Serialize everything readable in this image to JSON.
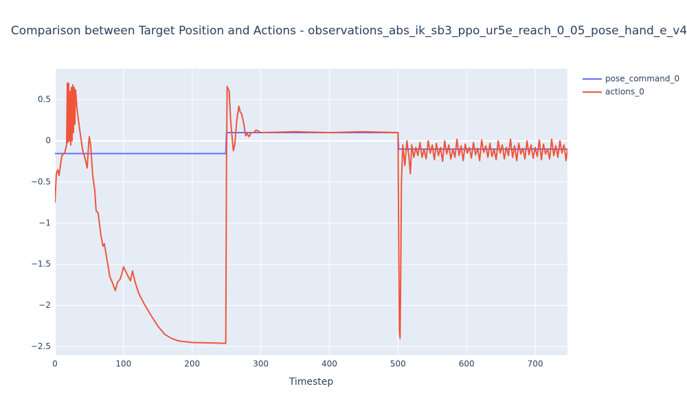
{
  "chart_data": {
    "type": "line",
    "title": "Comparison between Target Position and Actions - observations_abs_ik_sb3_ppo_ur5e_reach_0_05_pose_hand_e_v4",
    "xlabel": "Timestep",
    "xlim": [
      0,
      747
    ],
    "xticks": [
      0,
      100,
      200,
      300,
      400,
      500,
      600,
      700
    ],
    "ylim": [
      -2.604,
      0.876
    ],
    "yticks": [
      {
        "value": 0.5,
        "label": "0.5"
      },
      0,
      {
        "value": -0.5,
        "label": "−0.5"
      },
      {
        "value": -1,
        "label": "−1"
      },
      {
        "value": -1.5,
        "label": "−1.5"
      },
      {
        "value": -2,
        "label": "−2"
      },
      {
        "value": -2.5,
        "label": "−2.5"
      }
    ],
    "grid": true,
    "legend": "top-right",
    "series": [
      {
        "name": "pose_command_0",
        "color": "#636efa",
        "x": [
          0,
          249,
          250,
          500,
          501,
          747
        ],
        "values": [
          -0.155,
          -0.155,
          0.1,
          0.1,
          -0.1,
          -0.1
        ]
      },
      {
        "name": "actions_0",
        "color": "#ef553b",
        "x": [
          0,
          2,
          4,
          6,
          8,
          10,
          14,
          17,
          18,
          19,
          20,
          21,
          22,
          23,
          24,
          25,
          26,
          27,
          28,
          29,
          30,
          32,
          35,
          40,
          45,
          47,
          49,
          50,
          52,
          55,
          58,
          60,
          63,
          67,
          70,
          72,
          75,
          80,
          85,
          88,
          91,
          95,
          98,
          100,
          105,
          110,
          113,
          117,
          122,
          130,
          140,
          150,
          160,
          170,
          180,
          200,
          230,
          249,
          250,
          251,
          254,
          256,
          260,
          262,
          265,
          268,
          270,
          272,
          275,
          278,
          280,
          283,
          286,
          290,
          293,
          296,
          300,
          350,
          400,
          450,
          500,
          501,
          502,
          503,
          504,
          505,
          507,
          510,
          513,
          516,
          518,
          520,
          523,
          526,
          529,
          532,
          535,
          538,
          541,
          544,
          547,
          550,
          553,
          556,
          559,
          562,
          565,
          568,
          571,
          574,
          577,
          580,
          583,
          586,
          589,
          592,
          595,
          598,
          601,
          604,
          607,
          610,
          613,
          616,
          619,
          622,
          625,
          628,
          631,
          634,
          637,
          640,
          643,
          646,
          649,
          652,
          655,
          658,
          661,
          664,
          667,
          670,
          673,
          676,
          679,
          682,
          685,
          688,
          691,
          694,
          697,
          700,
          703,
          706,
          709,
          712,
          715,
          718,
          721,
          724,
          727,
          730,
          733,
          736,
          739,
          742,
          745,
          747
        ],
        "values": [
          -0.75,
          -0.4,
          -0.35,
          -0.42,
          -0.3,
          -0.18,
          -0.15,
          -0.05,
          0.7,
          -0.02,
          0.7,
          0,
          0.6,
          -0.05,
          0.65,
          0,
          0.68,
          0.1,
          0.65,
          0.2,
          0.62,
          0.4,
          0.2,
          -0.1,
          -0.25,
          -0.33,
          -0.05,
          0.05,
          -0.05,
          -0.42,
          -0.6,
          -0.85,
          -0.88,
          -1.15,
          -1.28,
          -1.25,
          -1.4,
          -1.65,
          -1.75,
          -1.82,
          -1.72,
          -1.68,
          -1.6,
          -1.53,
          -1.62,
          -1.7,
          -1.58,
          -1.72,
          -1.85,
          -1.98,
          -2.12,
          -2.25,
          -2.35,
          -2.4,
          -2.43,
          -2.45,
          -2.455,
          -2.46,
          -0.3,
          0.66,
          0.6,
          0.25,
          -0.12,
          -0.05,
          0.25,
          0.42,
          0.35,
          0.33,
          0.22,
          0.06,
          0.09,
          0.05,
          0.1,
          0.1,
          0.13,
          0.12,
          0.1,
          0.11,
          0.1,
          0.11,
          0.1,
          -1.2,
          -2.3,
          -2.4,
          -1.6,
          -0.5,
          -0.05,
          -0.3,
          0,
          -0.2,
          -0.4,
          -0.05,
          -0.2,
          -0.08,
          -0.18,
          -0.02,
          -0.2,
          -0.1,
          -0.22,
          0,
          -0.15,
          -0.05,
          -0.23,
          -0.03,
          -0.18,
          -0.08,
          -0.25,
          0,
          -0.16,
          -0.05,
          -0.22,
          -0.1,
          -0.2,
          0.02,
          -0.18,
          -0.06,
          -0.24,
          -0.04,
          -0.15,
          -0.08,
          -0.21,
          -0.02,
          -0.17,
          -0.09,
          -0.24,
          0.01,
          -0.14,
          -0.06,
          -0.2,
          -0.03,
          -0.19,
          -0.1,
          -0.23,
          0,
          -0.15,
          -0.05,
          -0.22,
          -0.08,
          -0.18,
          0.02,
          -0.2,
          -0.06,
          -0.24,
          -0.03,
          -0.16,
          -0.09,
          -0.22,
          0,
          -0.17,
          -0.05,
          -0.21,
          -0.08,
          -0.19,
          0.01,
          -0.23,
          -0.04,
          -0.16,
          -0.1,
          -0.22,
          0.02,
          -0.18,
          -0.06,
          -0.2,
          0,
          -0.15,
          -0.05,
          -0.24,
          -0.1
        ]
      }
    ]
  }
}
